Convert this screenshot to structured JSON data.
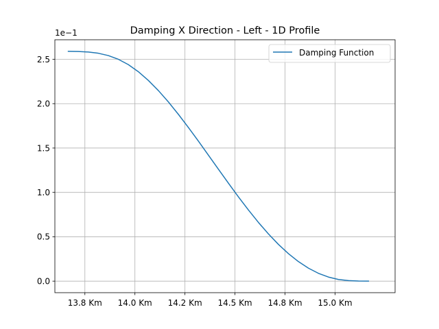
{
  "chart_data": {
    "type": "line",
    "title": "Damping X Direction - Left - 1D Profile",
    "xlabel": "",
    "ylabel": "",
    "y_offset_text": "1e−1",
    "xlim": [
      13.6,
      15.3
    ],
    "ylim": [
      -0.013,
      0.272
    ],
    "x_ticks": [
      13.75,
      14.0,
      14.25,
      14.5,
      14.75,
      15.0
    ],
    "x_tick_labels": [
      "13.8 Km",
      "14.0 Km",
      "14.2 Km",
      "14.5 Km",
      "14.8 Km",
      "15.0 Km"
    ],
    "y_ticks": [
      0.0,
      0.05,
      0.1,
      0.15,
      0.2,
      0.25
    ],
    "y_tick_labels": [
      "0.0",
      "0.5",
      "1.0",
      "1.5",
      "2.0",
      "2.5"
    ],
    "grid": true,
    "legend_position": "top-right",
    "series": [
      {
        "name": "Damping Function",
        "color": "#1f77b4",
        "x": [
          13.667,
          13.717,
          13.767,
          13.817,
          13.867,
          13.917,
          13.967,
          14.017,
          14.067,
          14.117,
          14.167,
          14.217,
          14.267,
          14.317,
          14.367,
          14.417,
          14.467,
          14.517,
          14.567,
          14.617,
          14.667,
          14.717,
          14.767,
          14.817,
          14.867,
          14.917,
          14.967,
          15.017,
          15.067,
          15.117,
          15.167
        ],
        "values": [
          0.259,
          0.2588,
          0.2582,
          0.2568,
          0.2542,
          0.25,
          0.244,
          0.236,
          0.2262,
          0.2148,
          0.202,
          0.188,
          0.1732,
          0.1578,
          0.142,
          0.1262,
          0.1104,
          0.095,
          0.0802,
          0.0662,
          0.0532,
          0.0414,
          0.031,
          0.022,
          0.0146,
          0.0088,
          0.0046,
          0.0019,
          0.0006,
          0.0001,
          0.0
        ]
      }
    ]
  }
}
